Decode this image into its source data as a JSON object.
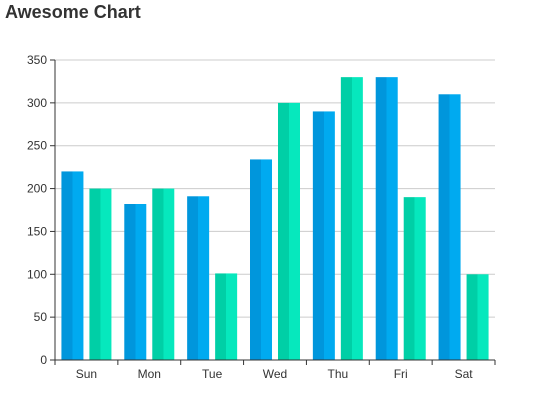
{
  "chart_data": {
    "type": "bar",
    "title": "Awesome Chart",
    "xlabel": "",
    "ylabel": "",
    "categories": [
      "Sun",
      "Mon",
      "Tue",
      "Wed",
      "Thu",
      "Fri",
      "Sat"
    ],
    "series": [
      {
        "values": [
          220,
          182,
          191,
          234,
          290,
          330,
          310
        ],
        "color": "#00aaf0",
        "color_dark": "#0096dc"
      },
      {
        "values": [
          200,
          200,
          101,
          300,
          330,
          190,
          100
        ],
        "color": "#06e8bd",
        "color_dark": "#00cfa6"
      }
    ],
    "ylim": [
      0,
      350
    ],
    "y_ticks": [
      "0",
      "50",
      "100",
      "150",
      "200",
      "250",
      "300",
      "350"
    ],
    "grid": true,
    "legend": "none"
  }
}
